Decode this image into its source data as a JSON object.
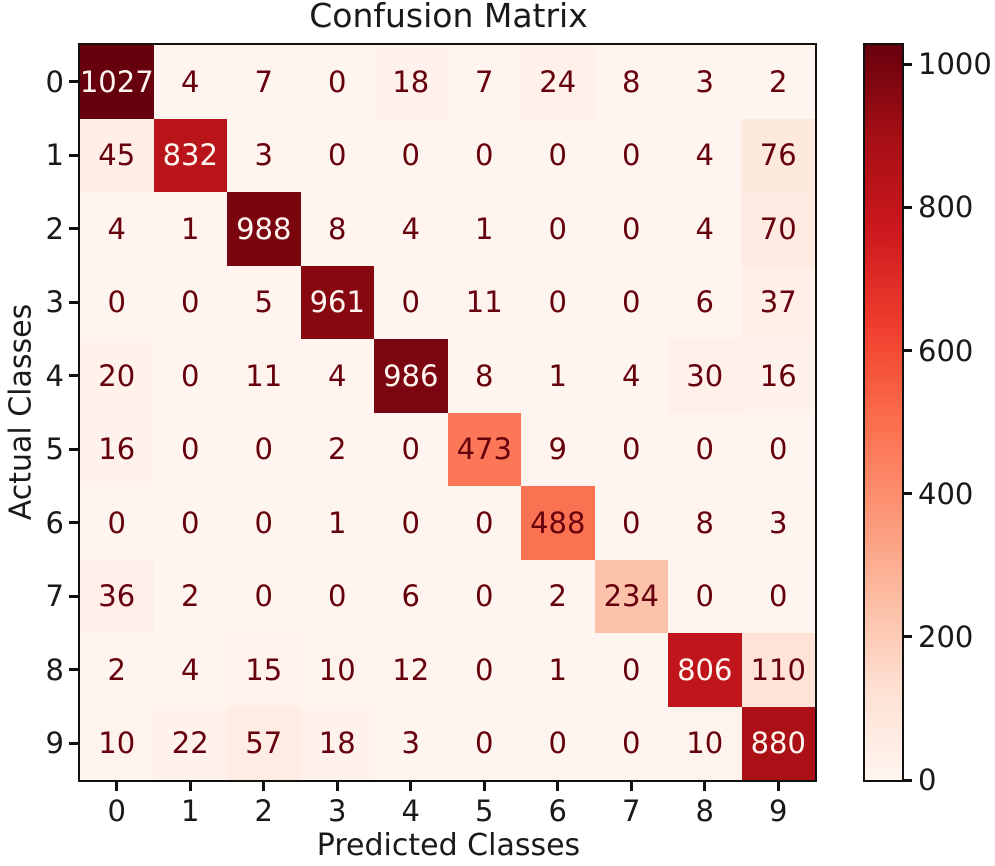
{
  "chart_data": {
    "type": "heatmap",
    "title": "Confusion Matrix",
    "xlabel": "Predicted Classes",
    "ylabel": "Actual Classes",
    "x_ticklabels": [
      "0",
      "1",
      "2",
      "3",
      "4",
      "5",
      "6",
      "7",
      "8",
      "9"
    ],
    "y_ticklabels": [
      "0",
      "1",
      "2",
      "3",
      "4",
      "5",
      "6",
      "7",
      "8",
      "9"
    ],
    "matrix": [
      [
        1027,
        4,
        7,
        0,
        18,
        7,
        24,
        8,
        3,
        2
      ],
      [
        45,
        832,
        3,
        0,
        0,
        0,
        0,
        0,
        4,
        76
      ],
      [
        4,
        1,
        988,
        8,
        4,
        1,
        0,
        0,
        4,
        70
      ],
      [
        0,
        0,
        5,
        961,
        0,
        11,
        0,
        0,
        6,
        37
      ],
      [
        20,
        0,
        11,
        4,
        986,
        8,
        1,
        4,
        30,
        16
      ],
      [
        16,
        0,
        0,
        2,
        0,
        473,
        9,
        0,
        0,
        0
      ],
      [
        0,
        0,
        0,
        1,
        0,
        0,
        488,
        0,
        8,
        3
      ],
      [
        36,
        2,
        0,
        0,
        6,
        0,
        2,
        234,
        0,
        0
      ],
      [
        2,
        4,
        15,
        10,
        12,
        0,
        1,
        0,
        806,
        110
      ],
      [
        10,
        22,
        57,
        18,
        3,
        0,
        0,
        0,
        10,
        880
      ]
    ],
    "grid": false,
    "legend": "colorbar-right",
    "colorbar": {
      "vmin": 0,
      "vmax": 1027,
      "ticks": [
        0,
        200,
        400,
        600,
        800,
        1000
      ],
      "tick_labels": [
        "0",
        "200",
        "400",
        "600",
        "800",
        "1000"
      ]
    },
    "colors": {
      "colormap": "Reds",
      "colormap_anchors": [
        "#fff5f0",
        "#fee0d2",
        "#fcbba1",
        "#fc9272",
        "#fb6a4a",
        "#ef3b2c",
        "#cb181d",
        "#a50f15",
        "#67000d"
      ],
      "text_on_dark_cell": "#fff5f0",
      "text_on_light_cell": "#67000d",
      "frame": "#111111",
      "label_text": "#1a1a1a"
    }
  }
}
